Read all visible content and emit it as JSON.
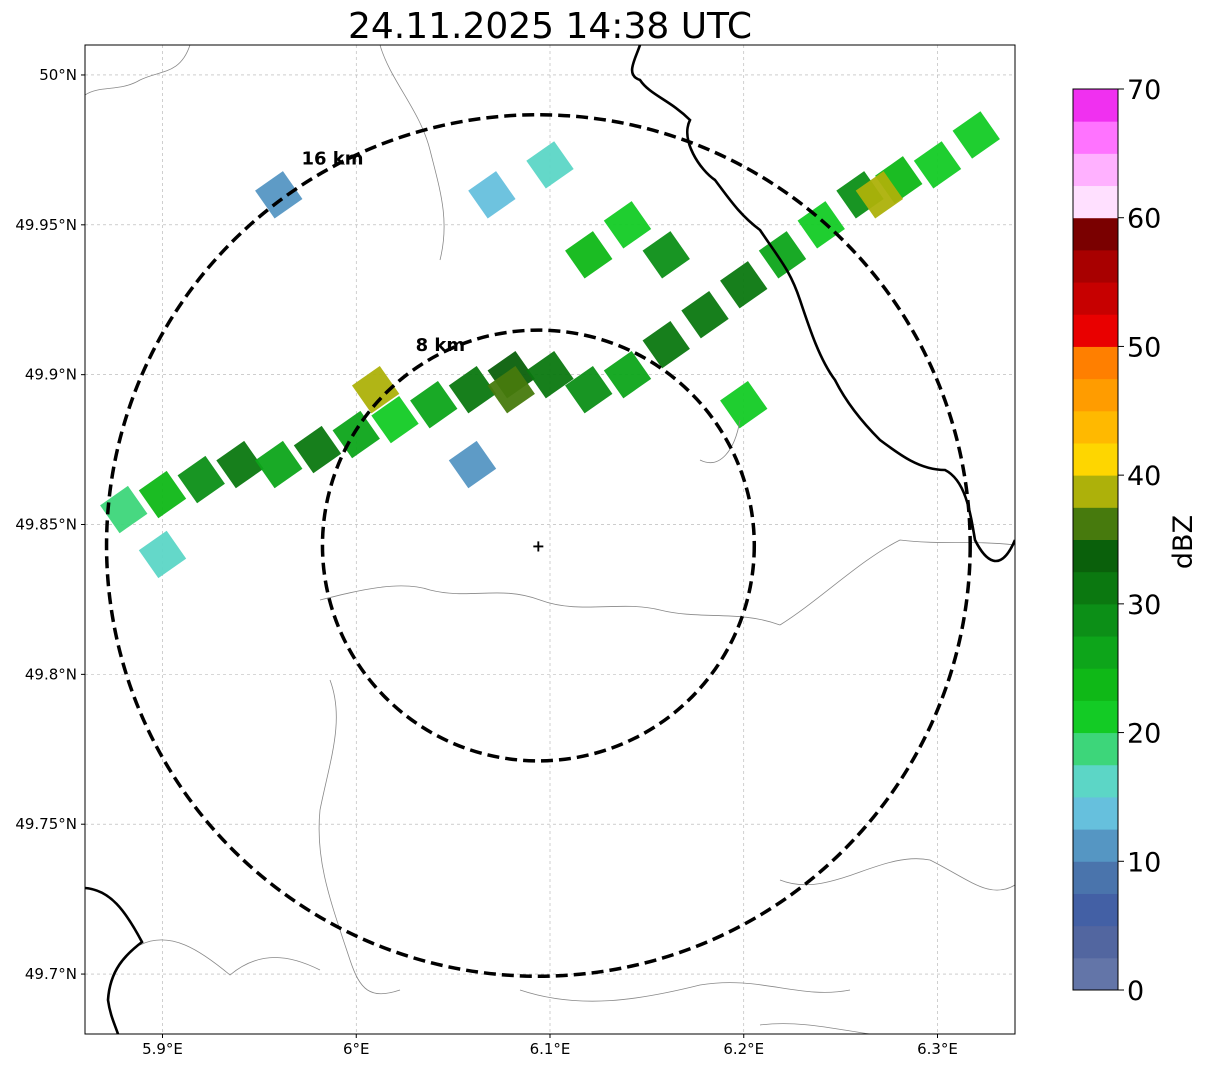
{
  "title": "24.11.2025 14:38 UTC",
  "map": {
    "lon_range": [
      5.86,
      6.34
    ],
    "lat_range": [
      49.68,
      50.01
    ],
    "lon_ticks": [
      {
        "value": 5.9,
        "label": "5.9°E"
      },
      {
        "value": 6.0,
        "label": "6°E"
      },
      {
        "value": 6.1,
        "label": "6.1°E"
      },
      {
        "value": 6.2,
        "label": "6.2°E"
      },
      {
        "value": 6.3,
        "label": "6.3°E"
      }
    ],
    "lat_ticks": [
      {
        "value": 49.7,
        "label": "49.7°N"
      },
      {
        "value": 49.75,
        "label": "49.75°N"
      },
      {
        "value": 49.8,
        "label": "49.8°N"
      },
      {
        "value": 49.85,
        "label": "49.85°N"
      },
      {
        "value": 49.9,
        "label": "49.9°N"
      },
      {
        "value": 49.95,
        "label": "49.95°N"
      },
      {
        "value": 50.0,
        "label": "50°N"
      }
    ],
    "gridlines": true,
    "center": {
      "lon": 6.094,
      "lat": 49.843
    },
    "rings": [
      {
        "radius_km": 8,
        "label": "8 km"
      },
      {
        "radius_km": 16,
        "label": "16 km"
      }
    ],
    "colors": {
      "ring": "#000000",
      "grid": "#b0b0b0",
      "border": "#000000",
      "boundary": "#888888"
    }
  },
  "colorbar": {
    "label": "dBZ",
    "min": 0,
    "max": 70,
    "tick_values": [
      0,
      10,
      20,
      30,
      40,
      50,
      60,
      70
    ],
    "tick_labels": [
      "0",
      "10",
      "20",
      "30",
      "40",
      "50",
      "60",
      "70"
    ],
    "colors": [
      "#6375a8",
      "#5266a0",
      "#4360a5",
      "#4a74ac",
      "#5596c3",
      "#66c0dd",
      "#5cd6c6",
      "#3dd67a",
      "#13cb25",
      "#0fb817",
      "#0da51a",
      "#0c8f17",
      "#0b7810",
      "#0a600b",
      "#477a0d",
      "#adb10a",
      "#fed600",
      "#ffb900",
      "#ff9c00",
      "#ff7f00",
      "#e90000",
      "#c70000",
      "#a80000",
      "#7a0000",
      "#ffe0ff",
      "#ffb1ff",
      "#ff73ff",
      "#f030f0"
    ]
  },
  "radar_cells": [
    {
      "lon": 5.88,
      "lat": 49.855,
      "dbz": 18
    },
    {
      "lon": 5.9,
      "lat": 49.86,
      "dbz": 24
    },
    {
      "lon": 5.92,
      "lat": 49.865,
      "dbz": 28
    },
    {
      "lon": 5.94,
      "lat": 49.87,
      "dbz": 30
    },
    {
      "lon": 5.96,
      "lat": 49.87,
      "dbz": 26
    },
    {
      "lon": 5.98,
      "lat": 49.875,
      "dbz": 30
    },
    {
      "lon": 6.0,
      "lat": 49.88,
      "dbz": 25
    },
    {
      "lon": 6.02,
      "lat": 49.885,
      "dbz": 22
    },
    {
      "lon": 6.04,
      "lat": 49.89,
      "dbz": 27
    },
    {
      "lon": 6.06,
      "lat": 49.895,
      "dbz": 30
    },
    {
      "lon": 6.08,
      "lat": 49.9,
      "dbz": 33
    },
    {
      "lon": 6.1,
      "lat": 49.9,
      "dbz": 31
    },
    {
      "lon": 6.12,
      "lat": 49.895,
      "dbz": 28
    },
    {
      "lon": 6.14,
      "lat": 49.9,
      "dbz": 26
    },
    {
      "lon": 6.16,
      "lat": 49.91,
      "dbz": 30
    },
    {
      "lon": 6.18,
      "lat": 49.92,
      "dbz": 32
    },
    {
      "lon": 6.2,
      "lat": 49.93,
      "dbz": 30
    },
    {
      "lon": 6.22,
      "lat": 49.94,
      "dbz": 27
    },
    {
      "lon": 6.24,
      "lat": 49.95,
      "dbz": 22
    },
    {
      "lon": 6.26,
      "lat": 49.96,
      "dbz": 28
    },
    {
      "lon": 6.28,
      "lat": 49.965,
      "dbz": 24
    },
    {
      "lon": 6.3,
      "lat": 49.97,
      "dbz": 20
    },
    {
      "lon": 6.32,
      "lat": 49.98,
      "dbz": 22
    },
    {
      "lon": 6.12,
      "lat": 49.94,
      "dbz": 24
    },
    {
      "lon": 6.14,
      "lat": 49.95,
      "dbz": 21
    },
    {
      "lon": 6.16,
      "lat": 49.94,
      "dbz": 29
    },
    {
      "lon": 6.07,
      "lat": 49.96,
      "dbz": 14
    },
    {
      "lon": 6.1,
      "lat": 49.97,
      "dbz": 16
    },
    {
      "lon": 5.96,
      "lat": 49.96,
      "dbz": 10
    },
    {
      "lon": 6.2,
      "lat": 49.89,
      "dbz": 22
    },
    {
      "lon": 6.06,
      "lat": 49.87,
      "dbz": 12
    },
    {
      "lon": 5.9,
      "lat": 49.84,
      "dbz": 16
    },
    {
      "lon": 6.27,
      "lat": 49.96,
      "dbz": 38
    },
    {
      "lon": 6.08,
      "lat": 49.895,
      "dbz": 37
    },
    {
      "lon": 6.01,
      "lat": 49.895,
      "dbz": 38
    }
  ]
}
